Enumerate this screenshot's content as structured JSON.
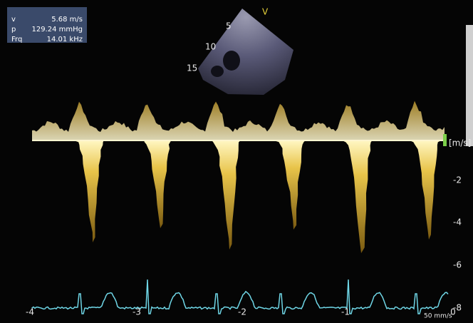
{
  "measurements": [
    {
      "label": "v",
      "value": "5.68 m/s"
    },
    {
      "label": "p",
      "value": "129.24 mmHg"
    },
    {
      "label": "Frq",
      "value": "14.01 kHz"
    }
  ],
  "sector": {
    "depth_labels": [
      "5",
      "10",
      "15"
    ],
    "marker": "V"
  },
  "doppler": {
    "unit": "[m/s]",
    "scale_labels": [
      "-2",
      "-4",
      "-6",
      "-8"
    ]
  },
  "ecg": {
    "time_labels": [
      "-4",
      "-3",
      "-2",
      "-1",
      "0"
    ],
    "sweep_speed": "50 mm/s"
  }
}
